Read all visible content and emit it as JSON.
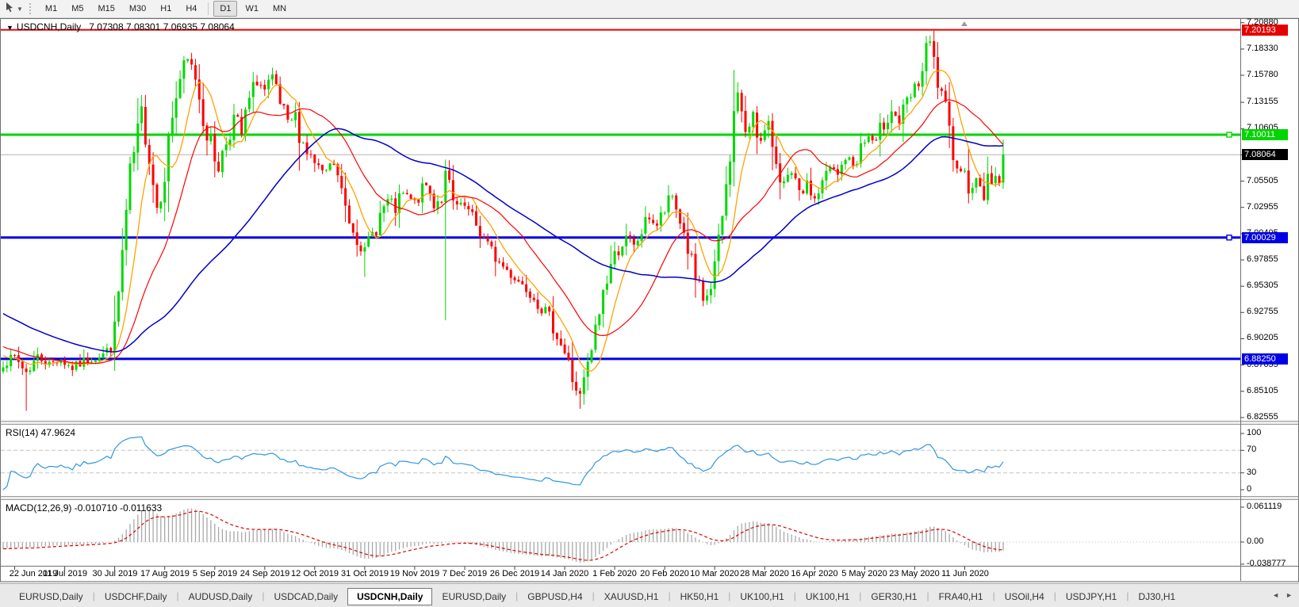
{
  "icons": {
    "title_caret": "▼",
    "toolbar_caret": "▼",
    "tab_scroll_left": "◄",
    "tab_scroll_right": "►",
    "tab_separator": "|"
  },
  "toolbar": {
    "timeframes": [
      "M1",
      "M5",
      "M15",
      "M30",
      "H1",
      "H4",
      "D1",
      "W1",
      "MN"
    ],
    "active_timeframe": "D1"
  },
  "chart": {
    "title_symbol": "USDCNH,Daily",
    "ohlc": "7.07308 7.08301 7.06935 7.08064",
    "current_price": "7.08064",
    "levels": [
      {
        "price": 7.20193,
        "label": "7.20193",
        "color": "#e60000",
        "width": 2,
        "handle": false
      },
      {
        "price": 7.10011,
        "label": "7.10011",
        "color": "#00d500",
        "width": 3,
        "handle": true
      },
      {
        "price": 7.00029,
        "label": "7.00029",
        "color": "#0000e6",
        "width": 3,
        "handle": true
      },
      {
        "price": 6.8825,
        "label": "6.88250",
        "color": "#0000e6",
        "width": 3,
        "handle": false
      }
    ],
    "price_axis_ticks": [
      "7.20880",
      "7.18330",
      "7.15780",
      "7.13155",
      "7.10605",
      "7.08055",
      "7.05505",
      "7.02955",
      "7.00405",
      "6.97855",
      "6.95305",
      "6.92755",
      "6.90205",
      "6.87655",
      "6.85105",
      "6.82555"
    ],
    "date_ticks": [
      "22 Jun 2019",
      "11 Jul 2019",
      "30 Jul 2019",
      "17 Aug 2019",
      "5 Sep 2019",
      "24 Sep 2019",
      "12 Oct 2019",
      "31 Oct 2019",
      "19 Nov 2019",
      "7 Dec 2019",
      "26 Dec 2019",
      "14 Jan 2020",
      "1 Feb 2020",
      "20 Feb 2020",
      "10 Mar 2020",
      "28 Mar 2020",
      "16 Apr 2020",
      "5 May 2020",
      "23 May 2020",
      "11 Jun 2020"
    ]
  },
  "indicators": {
    "rsi": {
      "label": "RSI(14) 47.9624",
      "axis": [
        "100",
        "70",
        "30",
        "0"
      ],
      "upper_level": 70,
      "lower_level": 30
    },
    "macd": {
      "label": "MACD(12,26,9) -0.010710 -0.011633",
      "axis": [
        "0.061119",
        "0.00",
        "-0.038777"
      ]
    }
  },
  "chart_data": {
    "type": "candlestick",
    "symbol": "USDCNH",
    "timeframe": "Daily",
    "current_bar": {
      "open": 7.07308,
      "high": 7.08301,
      "low": 7.06935,
      "close": 7.08064
    },
    "price_axis_range": [
      6.82555,
      7.2088
    ],
    "candle_count": 261,
    "date_tick_indices": [
      3,
      16,
      29,
      42,
      55,
      68,
      81,
      94,
      107,
      120,
      133,
      146,
      159,
      172,
      185,
      198,
      211,
      224,
      237,
      250
    ],
    "close_waypoints": [
      [
        0,
        6.878
      ],
      [
        3,
        6.884
      ],
      [
        6,
        6.87
      ],
      [
        9,
        6.885
      ],
      [
        12,
        6.878
      ],
      [
        15,
        6.882
      ],
      [
        18,
        6.873
      ],
      [
        21,
        6.88
      ],
      [
        24,
        6.884
      ],
      [
        27,
        6.889
      ],
      [
        29,
        6.908
      ],
      [
        31,
        6.985
      ],
      [
        33,
        7.06
      ],
      [
        35,
        7.1
      ],
      [
        36,
        7.125
      ],
      [
        38,
        7.08
      ],
      [
        40,
        7.03
      ],
      [
        42,
        7.065
      ],
      [
        44,
        7.12
      ],
      [
        46,
        7.155
      ],
      [
        48,
        7.172
      ],
      [
        50,
        7.158
      ],
      [
        52,
        7.118
      ],
      [
        54,
        7.09
      ],
      [
        56,
        7.067
      ],
      [
        58,
        7.095
      ],
      [
        60,
        7.118
      ],
      [
        62,
        7.1
      ],
      [
        64,
        7.132
      ],
      [
        66,
        7.152
      ],
      [
        68,
        7.143
      ],
      [
        70,
        7.153
      ],
      [
        72,
        7.128
      ],
      [
        74,
        7.11
      ],
      [
        76,
        7.118
      ],
      [
        78,
        7.092
      ],
      [
        80,
        7.077
      ],
      [
        83,
        7.062
      ],
      [
        86,
        7.072
      ],
      [
        88,
        7.042
      ],
      [
        90,
        7.018
      ],
      [
        92,
        7.002
      ],
      [
        94,
        6.988
      ],
      [
        96,
        7.003
      ],
      [
        98,
        7.022
      ],
      [
        100,
        7.036
      ],
      [
        102,
        7.026
      ],
      [
        104,
        7.042
      ],
      [
        107,
        7.034
      ],
      [
        110,
        7.051
      ],
      [
        112,
        7.032
      ],
      [
        114,
        7.042
      ],
      [
        115,
        7.062
      ],
      [
        117,
        7.032
      ],
      [
        120,
        7.03
      ],
      [
        123,
        7.012
      ],
      [
        126,
        6.992
      ],
      [
        129,
        6.976
      ],
      [
        132,
        6.965
      ],
      [
        135,
        6.955
      ],
      [
        138,
        6.944
      ],
      [
        141,
        6.927
      ],
      [
        144,
        6.908
      ],
      [
        146,
        6.888
      ],
      [
        148,
        6.863
      ],
      [
        150,
        6.846
      ],
      [
        152,
        6.872
      ],
      [
        154,
        6.908
      ],
      [
        156,
        6.948
      ],
      [
        158,
        6.974
      ],
      [
        160,
        6.99
      ],
      [
        162,
        7.0
      ],
      [
        164,
        6.991
      ],
      [
        166,
        7.006
      ],
      [
        168,
        7.02
      ],
      [
        170,
        7.012
      ],
      [
        172,
        7.026
      ],
      [
        174,
        7.04
      ],
      [
        176,
        7.018
      ],
      [
        178,
        6.99
      ],
      [
        180,
        6.958
      ],
      [
        182,
        6.936
      ],
      [
        184,
        6.952
      ],
      [
        186,
        6.992
      ],
      [
        188,
        7.048
      ],
      [
        190,
        7.118
      ],
      [
        191,
        7.142
      ],
      [
        193,
        7.098
      ],
      [
        195,
        7.124
      ],
      [
        197,
        7.092
      ],
      [
        199,
        7.108
      ],
      [
        201,
        7.078
      ],
      [
        203,
        7.052
      ],
      [
        205,
        7.06
      ],
      [
        207,
        7.042
      ],
      [
        209,
        7.052
      ],
      [
        211,
        7.038
      ],
      [
        213,
        7.052
      ],
      [
        215,
        7.068
      ],
      [
        217,
        7.06
      ],
      [
        219,
        7.078
      ],
      [
        221,
        7.07
      ],
      [
        223,
        7.088
      ],
      [
        225,
        7.098
      ],
      [
        227,
        7.09
      ],
      [
        229,
        7.112
      ],
      [
        231,
        7.124
      ],
      [
        233,
        7.112
      ],
      [
        235,
        7.13
      ],
      [
        237,
        7.142
      ],
      [
        239,
        7.162
      ],
      [
        240,
        7.178
      ],
      [
        241,
        7.188
      ],
      [
        242,
        7.168
      ],
      [
        243,
        7.15
      ],
      [
        244,
        7.132
      ],
      [
        245,
        7.12
      ],
      [
        246,
        7.1
      ],
      [
        247,
        7.088
      ],
      [
        248,
        7.076
      ],
      [
        249,
        7.062
      ],
      [
        250,
        7.07
      ],
      [
        251,
        7.054
      ],
      [
        252,
        7.044
      ],
      [
        253,
        7.06
      ],
      [
        254,
        7.048
      ],
      [
        255,
        7.04
      ],
      [
        256,
        7.058
      ],
      [
        257,
        7.05
      ],
      [
        258,
        7.064
      ],
      [
        259,
        7.054
      ],
      [
        260,
        7.0806
      ]
    ],
    "wick_overrides": {
      "6": {
        "low": 6.832
      },
      "94": {
        "low": 6.962
      },
      "115": {
        "low": 6.92
      },
      "150": {
        "low": 6.834
      },
      "190": {
        "high": 7.163
      },
      "240": {
        "high": 7.196
      },
      "241": {
        "high": 7.1965
      }
    },
    "prehistory_waypoints": [
      [
        0,
        7.01
      ],
      [
        25,
        6.935
      ],
      [
        45,
        6.9
      ],
      [
        59,
        6.884
      ]
    ],
    "ma_periods": {
      "fast": 8,
      "mid": 21,
      "slow": 55
    },
    "rsi_period": 14,
    "rsi_levels": [
      70,
      30
    ],
    "macd_params": [
      12,
      26,
      9
    ],
    "seed": 7,
    "jitter_base": 0.003,
    "wick_base": 0.0035,
    "last_close": 7.08064,
    "colors": {
      "bull": "#00d800",
      "bear": "#ff0000",
      "ma_fast": "#ffa200",
      "ma_mid": "#ff0000",
      "ma_slow": "#0000c8",
      "rsi": "#2f96e0",
      "macd_bar": "#a8a8a8",
      "macd_signal": "#e00000",
      "current_price_line": "#b4b4b4"
    }
  },
  "tabs": {
    "items": [
      "EURUSD,Daily",
      "USDCHF,Daily",
      "AUDUSD,Daily",
      "USDCAD,Daily",
      "USDCNH,Daily",
      "EURUSD,Daily",
      "GBPUSD,H4",
      "XAUUSD,H1",
      "HK50,H1",
      "UK100,H1",
      "UK100,H1",
      "GER30,H1",
      "FRA40,H1",
      "USOil,H4",
      "USDJPY,H1",
      "DJ30,H1"
    ],
    "active_index": 4
  }
}
